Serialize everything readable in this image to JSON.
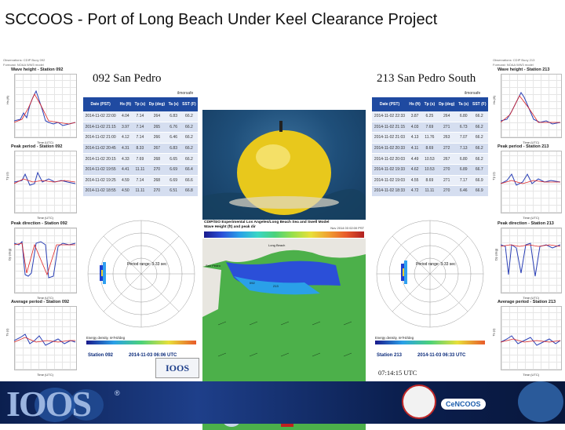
{
  "slide_title": "SCCOOS - Port of Long Beach Under Keel Clearance Project",
  "left_panel": {
    "meta_lines": [
      "Observations: CDIP Buoy 092",
      "Forecast: NOAA WW3 model"
    ],
    "station_title": "092 San Pedro",
    "brand": "ilmorsafe",
    "charts": [
      {
        "title": "Wave height - Station 092",
        "ylabel": "Hs (ft)",
        "xlabel": "Time (UTC)"
      },
      {
        "title": "Peak period - Station 092",
        "ylabel": "Tp (s)",
        "xlabel": "Time (UTC)"
      },
      {
        "title": "Peak direction - Station 092",
        "ylabel": "Dp (deg)",
        "xlabel": "Time (UTC)"
      },
      {
        "title": "Average period - Station 092",
        "ylabel": "Ta (s)",
        "xlabel": "Time (UTC)"
      }
    ],
    "table": {
      "headers": [
        "Date (PST)",
        "Hs (ft)",
        "Tp (s)",
        "Dp (deg)",
        "Ta (s)",
        "SST (F)"
      ],
      "rows": [
        [
          "2014-11-02 22:00",
          "4.04",
          "7.14",
          "264",
          "6.83",
          "66.2"
        ],
        [
          "2014-11-02 21:15",
          "3.97",
          "7.14",
          "265",
          "6.76",
          "66.2"
        ],
        [
          "2014-11-02 21:00",
          "4.12",
          "7.14",
          "266",
          "6.46",
          "66.2"
        ],
        [
          "2014-11-02 20:45",
          "4.31",
          "8.33",
          "267",
          "6.83",
          "66.2"
        ],
        [
          "2014-11-02 20:15",
          "4.33",
          "7.69",
          "268",
          "6.65",
          "66.2"
        ],
        [
          "2014-11-02 19:55",
          "4.41",
          "11.11",
          "270",
          "6.69",
          "66.4"
        ],
        [
          "2014-11-02 19:25",
          "4.59",
          "7.14",
          "268",
          "6.69",
          "66.6"
        ],
        [
          "2014-11-02 18:55",
          "4.50",
          "11.11",
          "270",
          "6.51",
          "66.8"
        ]
      ]
    },
    "rose": {
      "period": "Period range: 3-33 sec",
      "energy_label": "Energy density, m²/Hz/deg",
      "caption_station": "Station 092",
      "caption_time": "2014-11-03 06:06 UTC"
    }
  },
  "right_panel": {
    "meta_lines": [
      "Observations: CDIP Buoy 213",
      "Forecast: NOAA WW3 model"
    ],
    "station_title": "213 San Pedro South",
    "brand": "ilmorsafe",
    "charts": [
      {
        "title": "Wave height - Station 213",
        "ylabel": "Hs (ft)",
        "xlabel": "Time (UTC)"
      },
      {
        "title": "Peak period - Station 213",
        "ylabel": "Tp (s)",
        "xlabel": "Time (UTC)"
      },
      {
        "title": "Peak direction - Station 213",
        "ylabel": "Dp (deg)",
        "xlabel": "Time (UTC)"
      },
      {
        "title": "Average period - Station 213",
        "ylabel": "Ta (s)",
        "xlabel": "Time (UTC)"
      }
    ],
    "table": {
      "headers": [
        "Date (PST)",
        "Hs (ft)",
        "Tp (s)",
        "Dp (deg)",
        "Ta (s)",
        "SST (F)"
      ],
      "rows": [
        [
          "2014-11-02 22:33",
          "3.87",
          "6.25",
          "264",
          "6.80",
          "66.2"
        ],
        [
          "2014-11-02 21:15",
          "4.03",
          "7.69",
          "271",
          "6.73",
          "66.2"
        ],
        [
          "2014-11-02 21:03",
          "4.13",
          "11.76",
          "263",
          "7.07",
          "66.2"
        ],
        [
          "2014-11-02 20:33",
          "4.11",
          "8.69",
          "272",
          "7.13",
          "66.2"
        ],
        [
          "2014-11-02 20:03",
          "4.49",
          "10.53",
          "267",
          "6.80",
          "66.2"
        ],
        [
          "2014-11-02 19:33",
          "4.62",
          "10.53",
          "270",
          "6.89",
          "66.7"
        ],
        [
          "2014-11-02 19:03",
          "4.55",
          "8.69",
          "271",
          "7.17",
          "66.9"
        ],
        [
          "2014-11-02 18:33",
          "4.72",
          "11.11",
          "270",
          "6.46",
          "66.9"
        ]
      ]
    },
    "rose": {
      "period": "Period range: 3-33 sec",
      "energy_label": "Energy density, m²/Hz/deg",
      "caption_station": "Station 213",
      "caption_time": "2014-11-03 06:33 UTC"
    },
    "clock": "07:14:15 UTC"
  },
  "center": {
    "map_title": "CDIP/SIO Experimental Los Angeles/Long Beach Sea and Swell Model",
    "map_subtitle": "Wave Height (ft) and peak dir",
    "map_time": "Nov 2014 03 02:00 PST",
    "place_labels": [
      "San Pedro",
      "Long Beach"
    ],
    "station_labels": [
      "092",
      "213"
    ]
  },
  "footer": {
    "logo": "IOOS",
    "reg": "®",
    "partner": "CeNCOOS"
  },
  "colors": {
    "table_header": "#1f4aa1",
    "ocean": "#4cb04a",
    "footer": "#0b1f4f"
  }
}
